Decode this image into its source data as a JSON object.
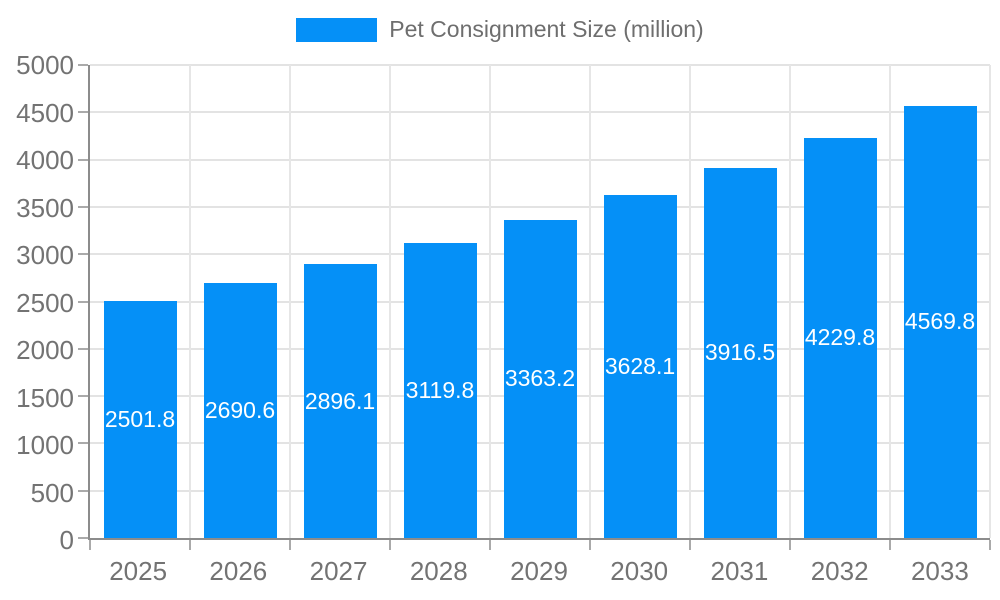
{
  "legend": {
    "label": "Pet Consignment Size (million)"
  },
  "chart_data": {
    "type": "bar",
    "title": "Pet Consignment Size (million)",
    "categories": [
      "2025",
      "2026",
      "2027",
      "2028",
      "2029",
      "2030",
      "2031",
      "2032",
      "2033"
    ],
    "series": [
      {
        "name": "Pet Consignment Size (million)",
        "values": [
          2501.8,
          2690.6,
          2896.1,
          3119.8,
          3363.2,
          3628.1,
          3916.5,
          4229.8,
          4569.8
        ]
      }
    ],
    "value_labels": [
      "2501.8",
      "2690.6",
      "2896.1",
      "3119.8",
      "3363.2",
      "3628.1",
      "3916.5",
      "4229.8",
      "4569.8"
    ],
    "xlabel": "",
    "ylabel": "",
    "ylim": [
      0,
      5000
    ],
    "y_ticks": [
      0,
      500,
      1000,
      1500,
      2000,
      2500,
      3000,
      3500,
      4000,
      4500,
      5000
    ],
    "grid": true,
    "legend_position": "top",
    "bar_color": "#0590f7",
    "value_label_color": "#ffffff"
  }
}
